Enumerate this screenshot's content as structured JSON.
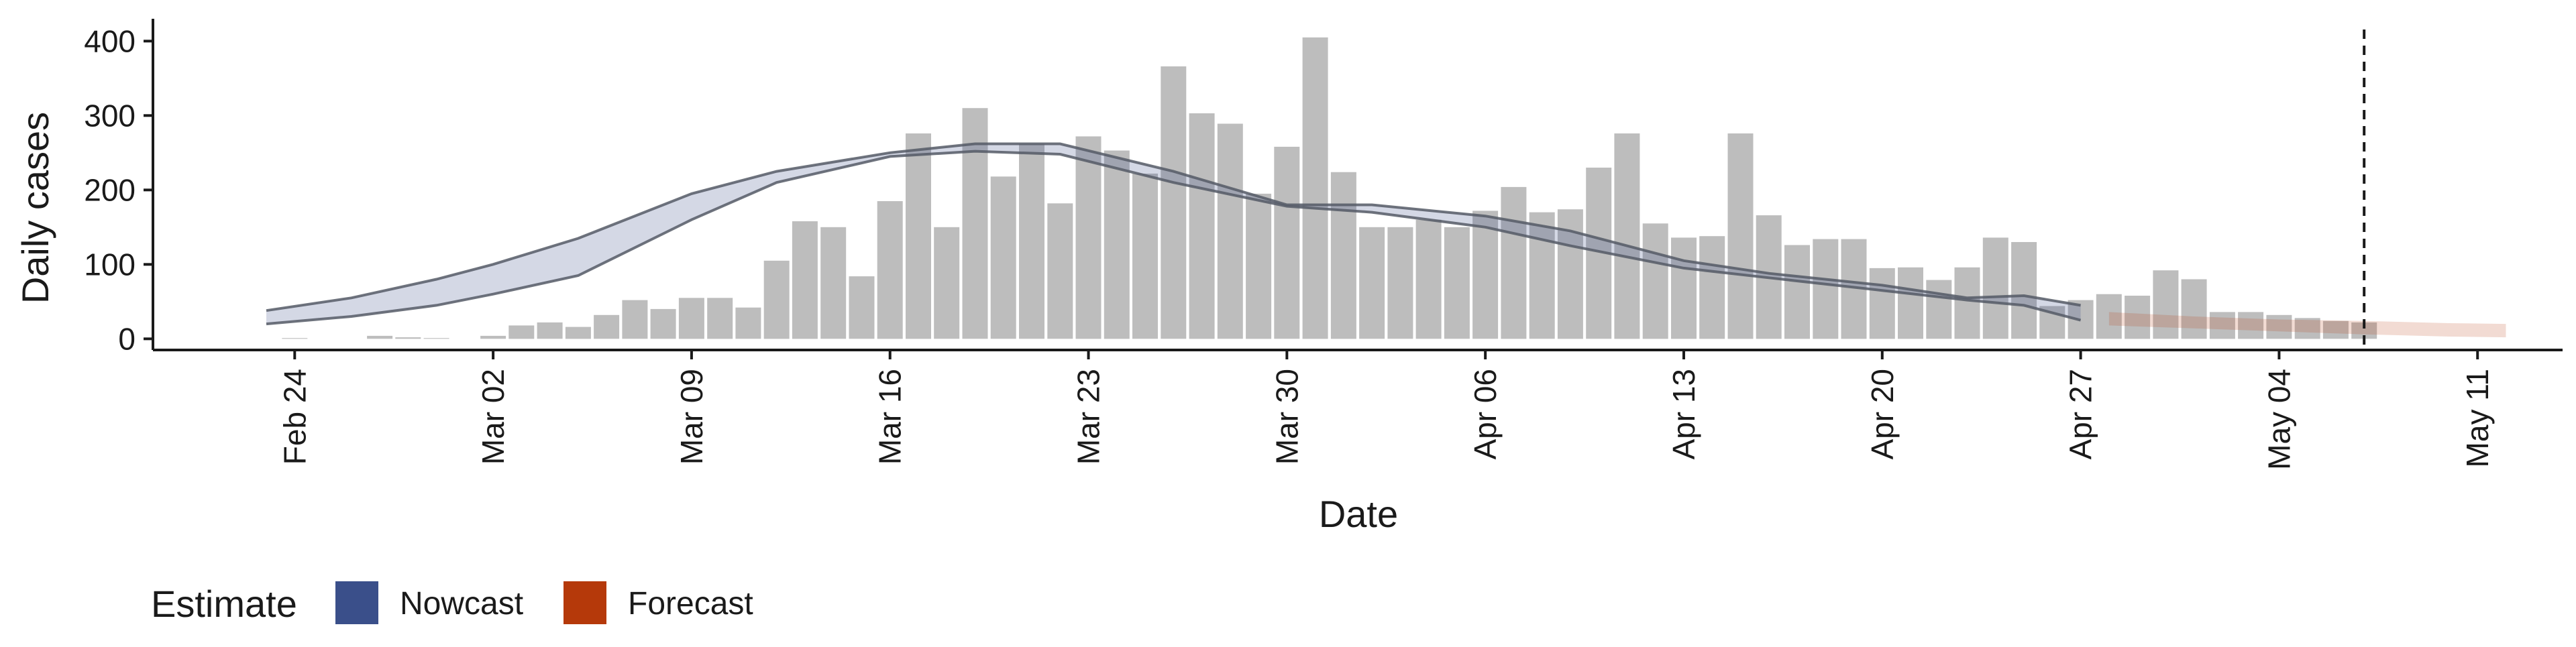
{
  "chart_data": {
    "type": "bar",
    "title": "",
    "xlabel": "Date",
    "ylabel": "Daily cases",
    "ylim": [
      -15,
      430
    ],
    "yticks": [
      0,
      100,
      200,
      300,
      400
    ],
    "xlim": [
      "2020-02-19",
      "2020-05-14"
    ],
    "xticks": [
      "2020-02-24",
      "2020-03-02",
      "2020-03-09",
      "2020-03-16",
      "2020-03-23",
      "2020-03-30",
      "2020-04-06",
      "2020-04-13",
      "2020-04-20",
      "2020-04-27",
      "2020-05-04",
      "2020-05-11"
    ],
    "xtick_labels": [
      "Feb 24",
      "Mar 02",
      "Mar 09",
      "Mar 16",
      "Mar 23",
      "Mar 30",
      "Apr 06",
      "Apr 13",
      "Apr 20",
      "Apr 27",
      "May 04",
      "May 11"
    ],
    "bars": {
      "name": "Daily cases",
      "color": "#bdbdbd",
      "dates": [
        "2020-02-24",
        "2020-02-25",
        "2020-02-26",
        "2020-02-27",
        "2020-02-28",
        "2020-02-29",
        "2020-03-01",
        "2020-03-02",
        "2020-03-03",
        "2020-03-04",
        "2020-03-05",
        "2020-03-06",
        "2020-03-07",
        "2020-03-08",
        "2020-03-09",
        "2020-03-10",
        "2020-03-11",
        "2020-03-12",
        "2020-03-13",
        "2020-03-14",
        "2020-03-15",
        "2020-03-16",
        "2020-03-17",
        "2020-03-18",
        "2020-03-19",
        "2020-03-20",
        "2020-03-21",
        "2020-03-22",
        "2020-03-23",
        "2020-03-24",
        "2020-03-25",
        "2020-03-26",
        "2020-03-27",
        "2020-03-28",
        "2020-03-29",
        "2020-03-30",
        "2020-03-31",
        "2020-04-01",
        "2020-04-02",
        "2020-04-03",
        "2020-04-04",
        "2020-04-05",
        "2020-04-06",
        "2020-04-07",
        "2020-04-08",
        "2020-04-09",
        "2020-04-10",
        "2020-04-11",
        "2020-04-12",
        "2020-04-13",
        "2020-04-14",
        "2020-04-15",
        "2020-04-16",
        "2020-04-17",
        "2020-04-18",
        "2020-04-19",
        "2020-04-20",
        "2020-04-21",
        "2020-04-22",
        "2020-04-23",
        "2020-04-24",
        "2020-04-25",
        "2020-04-26",
        "2020-04-27",
        "2020-04-28",
        "2020-04-29",
        "2020-04-30",
        "2020-05-01",
        "2020-05-02",
        "2020-05-03",
        "2020-05-04",
        "2020-05-05",
        "2020-05-06",
        "2020-05-07"
      ],
      "values": [
        1,
        0,
        0,
        4,
        2,
        1,
        0,
        4,
        18,
        22,
        16,
        32,
        52,
        40,
        55,
        55,
        42,
        105,
        158,
        150,
        84,
        185,
        276,
        150,
        310,
        218,
        262,
        182,
        272,
        253,
        222,
        366,
        303,
        289,
        195,
        258,
        405,
        224,
        150,
        150,
        160,
        150,
        172,
        204,
        170,
        174,
        230,
        276,
        155,
        136,
        138,
        276,
        166,
        126,
        134,
        134,
        95,
        96,
        79,
        96,
        136,
        130,
        44,
        52,
        60,
        58,
        92,
        80,
        36,
        36,
        32,
        28,
        24,
        22
      ]
    },
    "series": [
      {
        "name": "Nowcast",
        "color": "#3a4f8a",
        "x": [
          "2020-02-23",
          "2020-02-26",
          "2020-02-29",
          "2020-03-02",
          "2020-03-05",
          "2020-03-09",
          "2020-03-12",
          "2020-03-16",
          "2020-03-19",
          "2020-03-22",
          "2020-03-26",
          "2020-03-30",
          "2020-04-02",
          "2020-04-06",
          "2020-04-09",
          "2020-04-13",
          "2020-04-16",
          "2020-04-20",
          "2020-04-23",
          "2020-04-25",
          "2020-04-27"
        ],
        "upper": [
          38,
          55,
          80,
          100,
          135,
          195,
          225,
          250,
          262,
          262,
          225,
          180,
          180,
          165,
          145,
          105,
          88,
          72,
          55,
          58,
          45
        ],
        "lower": [
          20,
          30,
          45,
          60,
          85,
          160,
          210,
          245,
          252,
          248,
          210,
          178,
          170,
          150,
          125,
          95,
          82,
          65,
          52,
          45,
          25
        ]
      },
      {
        "name": "Forecast",
        "color": "#b5390a",
        "x": [
          "2020-04-28",
          "2020-05-01",
          "2020-05-04",
          "2020-05-07",
          "2020-05-10",
          "2020-05-12"
        ],
        "upper": [
          36,
          30,
          26,
          24,
          21,
          20
        ],
        "lower": [
          18,
          14,
          10,
          6,
          3,
          2
        ]
      }
    ],
    "vline": "2020-05-07",
    "grid": false,
    "legend": {
      "title": "Estimate",
      "position": "bottom-left",
      "entries": [
        {
          "label": "Nowcast",
          "color": "#3a4f8a"
        },
        {
          "label": "Forecast",
          "color": "#b5390a"
        }
      ]
    }
  }
}
